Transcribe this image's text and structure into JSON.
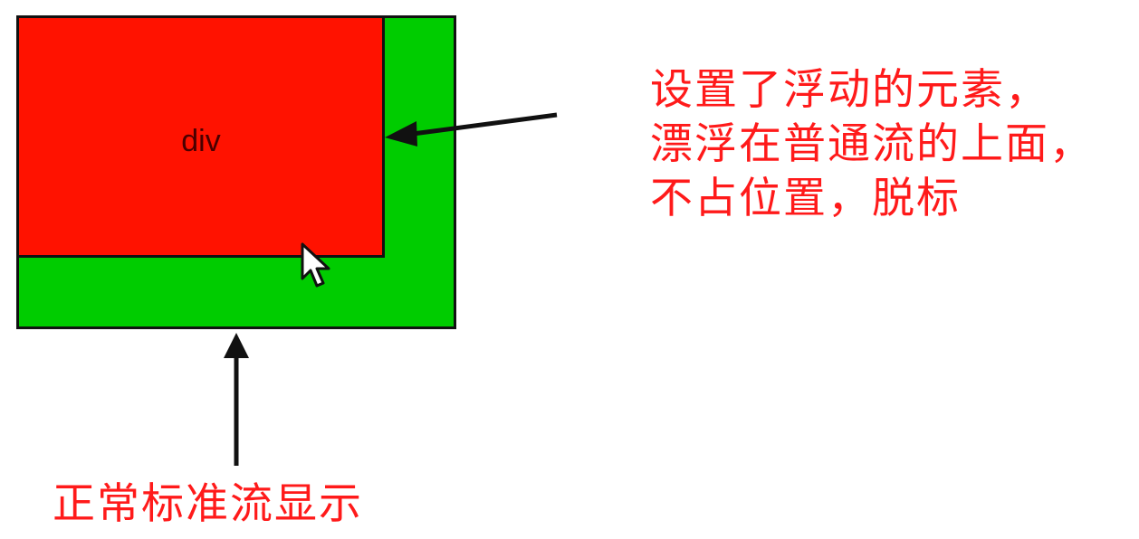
{
  "colors": {
    "container_fill": "#00cc00",
    "float_fill": "#ff1200",
    "outline": "#111111",
    "annotation_text": "#ff1a1a",
    "div_text": "#4a0000"
  },
  "diagram": {
    "container_label": "",
    "float_box_label": "div"
  },
  "annotations": {
    "floating": {
      "lines": [
        "设置了浮动的元素，",
        "漂浮在普通流的上面，",
        "不占位置，脱标"
      ]
    },
    "normal_flow": {
      "text": "正常标准流显示"
    }
  },
  "icons": {
    "arrow_right_to_float": "arrow-left-icon",
    "arrow_to_container": "arrow-up-icon",
    "pointer": "mouse-cursor-icon"
  }
}
